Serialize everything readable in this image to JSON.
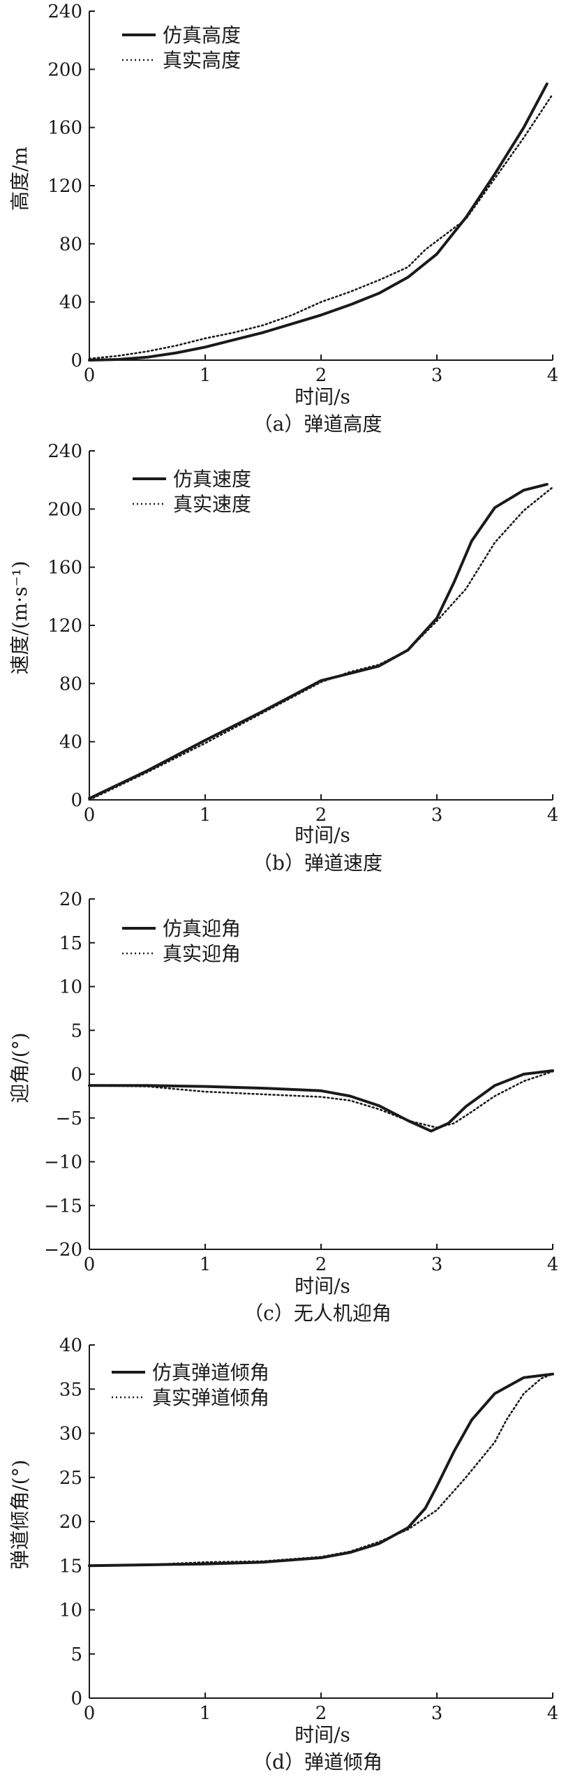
{
  "chart_data": [
    {
      "type": "line",
      "xlabel": "时间/s",
      "ylabel": "高度/m",
      "caption": "（a）弹道高度",
      "xlim": [
        0,
        4
      ],
      "ylim": [
        0,
        240
      ],
      "xticks": [
        "0",
        "1",
        "2",
        "3",
        "4"
      ],
      "yticks": [
        "0",
        "40",
        "80",
        "120",
        "160",
        "200",
        "240"
      ],
      "legend_position": "top-left",
      "series": [
        {
          "name": "仿真高度",
          "style": "solid",
          "x": [
            0,
            0.25,
            0.5,
            0.75,
            1.0,
            1.25,
            1.5,
            1.75,
            2.0,
            2.25,
            2.5,
            2.75,
            3.0,
            3.25,
            3.5,
            3.75,
            3.95
          ],
          "y": [
            0,
            0.5,
            2,
            5,
            9,
            14,
            19,
            25,
            31,
            38,
            46,
            57,
            73,
            98,
            128,
            160,
            190
          ]
        },
        {
          "name": "真实高度",
          "style": "dotted",
          "x": [
            0,
            0.25,
            0.5,
            0.75,
            1.0,
            1.25,
            1.5,
            1.75,
            2.0,
            2.25,
            2.5,
            2.75,
            2.9,
            3.0,
            3.25,
            3.5,
            3.75,
            4.0
          ],
          "y": [
            1,
            3,
            6,
            10,
            15,
            19,
            24,
            31,
            40,
            47,
            55,
            64,
            76,
            82,
            97,
            125,
            153,
            183
          ]
        }
      ]
    },
    {
      "type": "line",
      "xlabel": "时间/s",
      "ylabel": "速度/(m·s⁻¹)",
      "caption": "（b）弹道速度",
      "xlim": [
        0,
        4
      ],
      "ylim": [
        0,
        240
      ],
      "xticks": [
        "0",
        "1",
        "2",
        "3",
        "4"
      ],
      "yticks": [
        "0",
        "40",
        "80",
        "120",
        "160",
        "200",
        "240"
      ],
      "legend_position": "top-left",
      "series": [
        {
          "name": "仿真速度",
          "style": "solid",
          "x": [
            0,
            0.5,
            1.0,
            1.5,
            2.0,
            2.25,
            2.5,
            2.75,
            3.0,
            3.15,
            3.3,
            3.5,
            3.75,
            3.95
          ],
          "y": [
            1,
            20,
            41,
            61,
            82,
            87,
            92,
            103,
            125,
            150,
            178,
            201,
            213,
            217
          ]
        },
        {
          "name": "真实速度",
          "style": "dotted",
          "x": [
            0,
            0.5,
            1.0,
            1.5,
            2.0,
            2.25,
            2.5,
            2.75,
            3.0,
            3.25,
            3.5,
            3.75,
            4.0
          ],
          "y": [
            0,
            19,
            39,
            60,
            81,
            88,
            93,
            103,
            123,
            145,
            177,
            199,
            215
          ]
        }
      ]
    },
    {
      "type": "line",
      "xlabel": "时间/s",
      "ylabel": "迎角/(°)",
      "caption": "（c）无人机迎角",
      "xlim": [
        0,
        4
      ],
      "ylim": [
        -20,
        20
      ],
      "xticks": [
        "0",
        "1",
        "2",
        "3",
        "4"
      ],
      "yticks": [
        "−20",
        "−15",
        "−10",
        "−5",
        "0",
        "5",
        "10",
        "15",
        "20"
      ],
      "legend_position": "top-left",
      "series": [
        {
          "name": "仿真迎角",
          "style": "solid",
          "x": [
            0,
            0.5,
            1.0,
            1.5,
            2.0,
            2.25,
            2.5,
            2.75,
            2.95,
            3.1,
            3.25,
            3.5,
            3.75,
            4.0
          ],
          "y": [
            -1.3,
            -1.3,
            -1.4,
            -1.6,
            -1.9,
            -2.5,
            -3.6,
            -5.3,
            -6.5,
            -5.6,
            -3.7,
            -1.3,
            0,
            0.4
          ]
        },
        {
          "name": "真实迎角",
          "style": "dotted",
          "x": [
            0,
            0.5,
            1.0,
            1.5,
            2.0,
            2.25,
            2.5,
            2.75,
            3.0,
            3.15,
            3.3,
            3.5,
            3.75,
            4.0
          ],
          "y": [
            -1.3,
            -1.4,
            -2.0,
            -2.3,
            -2.6,
            -3.0,
            -4.0,
            -5.3,
            -6.1,
            -5.6,
            -4.3,
            -2.5,
            -0.8,
            0.3
          ]
        }
      ]
    },
    {
      "type": "line",
      "xlabel": "时间/s",
      "ylabel": "弹道倾角/(°)",
      "caption": "（d）弹道倾角",
      "xlim": [
        0,
        4
      ],
      "ylim": [
        0,
        40
      ],
      "xticks": [
        "0",
        "1",
        "2",
        "3",
        "4"
      ],
      "yticks": [
        "0",
        "5",
        "10",
        "15",
        "20",
        "25",
        "30",
        "35",
        "40"
      ],
      "legend_position": "top-left",
      "series": [
        {
          "name": "仿真弹道倾角",
          "style": "solid",
          "x": [
            0,
            0.5,
            1.0,
            1.5,
            2.0,
            2.25,
            2.5,
            2.75,
            2.9,
            3.0,
            3.15,
            3.3,
            3.5,
            3.75,
            4.0
          ],
          "y": [
            15,
            15.1,
            15.2,
            15.4,
            15.9,
            16.5,
            17.5,
            19.3,
            21.5,
            24,
            28,
            31.5,
            34.5,
            36.3,
            36.7
          ]
        },
        {
          "name": "真实弹道倾角",
          "style": "dotted",
          "x": [
            0,
            0.5,
            1.0,
            1.5,
            2.0,
            2.25,
            2.5,
            2.75,
            3.0,
            3.25,
            3.5,
            3.6,
            3.75,
            3.9,
            4.0
          ],
          "y": [
            15,
            15.1,
            15.4,
            15.5,
            16,
            16.6,
            17.7,
            19.1,
            21.3,
            25,
            29,
            31.5,
            34.5,
            36.2,
            36.7
          ]
        }
      ]
    }
  ]
}
